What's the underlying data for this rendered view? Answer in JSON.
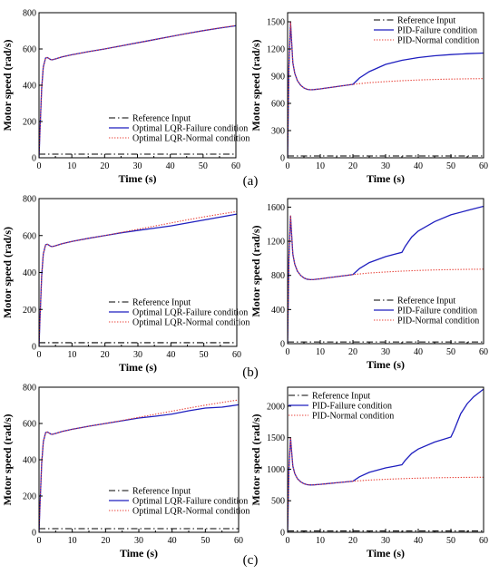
{
  "panel_labels": [
    "(a)",
    "(b)",
    "(c)"
  ],
  "colors": {
    "reference": "#000000",
    "failure": "#1f1fbf",
    "normal": "#e8433a",
    "axis": "#000000"
  },
  "chart_data": [
    {
      "type": "line",
      "id": "a-left",
      "xlabel": "Time (s)",
      "ylabel": "Motor speed (rad/s)",
      "xlim": [
        0,
        60
      ],
      "ylim": [
        0,
        800
      ],
      "xticks": [
        0,
        10,
        20,
        30,
        40,
        50,
        60
      ],
      "yticks": [
        0,
        200,
        400,
        600,
        800
      ],
      "grid": false,
      "legend_position": "lower-right",
      "series": [
        {
          "name": "Reference Input",
          "style": "dashdot",
          "color": "#000000",
          "x": [
            0,
            60
          ],
          "y": [
            20,
            20
          ]
        },
        {
          "name": "Optimal LQR-Failure condition",
          "style": "solid",
          "color": "#1f1fbf",
          "x": [
            0,
            0.3,
            0.8,
            1.3,
            2,
            2.5,
            3,
            3.5,
            4,
            5,
            7,
            10,
            15,
            20,
            25,
            30,
            35,
            40,
            45,
            50,
            55,
            60
          ],
          "y": [
            0,
            150,
            380,
            500,
            550,
            553,
            548,
            542,
            540,
            545,
            556,
            568,
            585,
            600,
            617,
            634,
            651,
            668,
            685,
            701,
            715,
            728
          ]
        },
        {
          "name": "Optimal LQR-Normal condition",
          "style": "dotted",
          "color": "#e8433a",
          "x": [
            0,
            0.3,
            0.8,
            1.3,
            2,
            2.5,
            3,
            3.5,
            4,
            5,
            7,
            10,
            15,
            20,
            25,
            30,
            35,
            40,
            45,
            50,
            55,
            60
          ],
          "y": [
            0,
            150,
            380,
            500,
            550,
            553,
            548,
            542,
            540,
            545,
            556,
            568,
            585,
            600,
            617,
            634,
            651,
            668,
            685,
            701,
            716,
            730
          ]
        }
      ]
    },
    {
      "type": "line",
      "id": "a-right",
      "xlabel": "Time (s)",
      "ylabel": "Motor speed (rad/s)",
      "xlim": [
        0,
        60
      ],
      "ylim": [
        0,
        1600
      ],
      "xticks": [
        0,
        10,
        20,
        30,
        40,
        50,
        60
      ],
      "yticks": [
        0,
        300,
        600,
        900,
        1200,
        1500
      ],
      "grid": false,
      "legend_position": "top-right",
      "series": [
        {
          "name": "Reference Input",
          "style": "dashdot",
          "color": "#000000",
          "x": [
            0,
            60
          ],
          "y": [
            20,
            20
          ]
        },
        {
          "name": "PID-Failure condition",
          "style": "solid",
          "color": "#1f1fbf",
          "x": [
            0,
            0.4,
            0.9,
            1.2,
            1.6,
            2.2,
            3,
            4,
            5,
            6,
            7,
            8,
            10,
            12,
            15,
            18,
            20,
            22,
            25,
            30,
            35,
            40,
            45,
            50,
            55,
            60
          ],
          "y": [
            0,
            1000,
            1500,
            1300,
            1050,
            930,
            850,
            800,
            770,
            755,
            750,
            752,
            760,
            770,
            785,
            800,
            810,
            880,
            950,
            1030,
            1075,
            1105,
            1125,
            1138,
            1148,
            1155
          ]
        },
        {
          "name": "PID-Normal condition",
          "style": "dotted",
          "color": "#e8433a",
          "x": [
            0,
            0.4,
            0.9,
            1.2,
            1.6,
            2.2,
            3,
            4,
            5,
            6,
            7,
            8,
            10,
            12,
            15,
            18,
            20,
            25,
            30,
            35,
            40,
            45,
            50,
            55,
            60
          ],
          "y": [
            0,
            1000,
            1500,
            1300,
            1050,
            930,
            850,
            800,
            770,
            755,
            750,
            752,
            760,
            770,
            785,
            800,
            810,
            828,
            840,
            850,
            858,
            864,
            868,
            871,
            873
          ]
        }
      ]
    },
    {
      "type": "line",
      "id": "b-left",
      "xlabel": "Time (s)",
      "ylabel": "Motor speed (rad/s)",
      "xlim": [
        0,
        60
      ],
      "ylim": [
        0,
        800
      ],
      "xticks": [
        0,
        10,
        20,
        30,
        40,
        50,
        60
      ],
      "yticks": [
        0,
        200,
        400,
        600,
        800
      ],
      "grid": false,
      "legend_position": "lower-right",
      "series": [
        {
          "name": "Reference Input",
          "style": "dashdot",
          "color": "#000000",
          "x": [
            0,
            60
          ],
          "y": [
            20,
            20
          ]
        },
        {
          "name": "Optimal LQR-Failure condition",
          "style": "solid",
          "color": "#1f1fbf",
          "x": [
            0,
            0.3,
            0.8,
            1.3,
            2,
            2.5,
            3,
            3.5,
            4,
            5,
            7,
            10,
            15,
            20,
            25,
            30,
            35,
            40,
            45,
            50,
            55,
            60
          ],
          "y": [
            0,
            150,
            380,
            500,
            550,
            553,
            548,
            542,
            540,
            545,
            556,
            568,
            585,
            600,
            615,
            628,
            640,
            652,
            668,
            684,
            700,
            716
          ]
        },
        {
          "name": "Optimal LQR-Normal condition",
          "style": "dotted",
          "color": "#e8433a",
          "x": [
            0,
            0.3,
            0.8,
            1.3,
            2,
            2.5,
            3,
            3.5,
            4,
            5,
            7,
            10,
            15,
            20,
            25,
            30,
            35,
            40,
            45,
            50,
            55,
            60
          ],
          "y": [
            0,
            150,
            380,
            500,
            550,
            553,
            548,
            542,
            540,
            545,
            556,
            568,
            585,
            600,
            617,
            634,
            651,
            668,
            685,
            701,
            716,
            730
          ]
        }
      ]
    },
    {
      "type": "line",
      "id": "b-right",
      "xlabel": "Time (s)",
      "ylabel": "Motor speed (rad/s)",
      "xlim": [
        0,
        60
      ],
      "ylim": [
        0,
        1700
      ],
      "xticks": [
        0,
        10,
        20,
        30,
        40,
        50,
        60
      ],
      "yticks": [
        0,
        400,
        800,
        1200,
        1600
      ],
      "grid": false,
      "legend_position": "lower-right",
      "series": [
        {
          "name": "Reference Input",
          "style": "dashdot",
          "color": "#000000",
          "x": [
            0,
            60
          ],
          "y": [
            20,
            20
          ]
        },
        {
          "name": "PID-Failure condition",
          "style": "solid",
          "color": "#1f1fbf",
          "x": [
            0,
            0.4,
            0.9,
            1.2,
            1.6,
            2.2,
            3,
            4,
            5,
            6,
            7,
            8,
            10,
            12,
            15,
            18,
            20,
            22,
            25,
            30,
            33,
            35,
            36,
            38,
            40,
            45,
            50,
            55,
            60
          ],
          "y": [
            0,
            1000,
            1500,
            1300,
            1050,
            930,
            850,
            800,
            770,
            755,
            750,
            752,
            760,
            770,
            785,
            800,
            810,
            880,
            950,
            1020,
            1050,
            1070,
            1140,
            1250,
            1320,
            1430,
            1510,
            1560,
            1610
          ]
        },
        {
          "name": "PID-Normal condition",
          "style": "dotted",
          "color": "#e8433a",
          "x": [
            0,
            0.4,
            0.9,
            1.2,
            1.6,
            2.2,
            3,
            4,
            5,
            6,
            7,
            8,
            10,
            12,
            15,
            18,
            20,
            25,
            30,
            35,
            40,
            45,
            50,
            55,
            60
          ],
          "y": [
            0,
            1000,
            1500,
            1300,
            1050,
            930,
            850,
            800,
            770,
            755,
            750,
            752,
            760,
            770,
            785,
            800,
            810,
            828,
            840,
            850,
            858,
            864,
            868,
            871,
            873
          ]
        }
      ]
    },
    {
      "type": "line",
      "id": "c-left",
      "xlabel": "Time (s)",
      "ylabel": "Motor speed (rad/s)",
      "xlim": [
        0,
        60
      ],
      "ylim": [
        0,
        800
      ],
      "xticks": [
        0,
        10,
        20,
        30,
        40,
        50,
        60
      ],
      "yticks": [
        0,
        200,
        400,
        600,
        800
      ],
      "grid": false,
      "legend_position": "lower-right",
      "series": [
        {
          "name": "Reference Input",
          "style": "dashdot",
          "color": "#000000",
          "x": [
            0,
            60
          ],
          "y": [
            20,
            20
          ]
        },
        {
          "name": "Optimal LQR-Failure condition",
          "style": "solid",
          "color": "#1f1fbf",
          "x": [
            0,
            0.3,
            0.8,
            1.3,
            2,
            2.5,
            3,
            3.5,
            4,
            5,
            7,
            10,
            15,
            20,
            25,
            30,
            35,
            40,
            45,
            50,
            55,
            60
          ],
          "y": [
            0,
            150,
            380,
            500,
            550,
            553,
            548,
            542,
            540,
            545,
            556,
            568,
            585,
            600,
            615,
            630,
            640,
            652,
            670,
            685,
            690,
            703
          ]
        },
        {
          "name": "Optimal LQR-Normal condition",
          "style": "dotted",
          "color": "#e8433a",
          "x": [
            0,
            0.3,
            0.8,
            1.3,
            2,
            2.5,
            3,
            3.5,
            4,
            5,
            7,
            10,
            15,
            20,
            25,
            30,
            35,
            40,
            45,
            50,
            55,
            60
          ],
          "y": [
            0,
            150,
            380,
            500,
            550,
            553,
            548,
            542,
            540,
            545,
            556,
            568,
            585,
            600,
            617,
            634,
            651,
            668,
            685,
            701,
            716,
            730
          ]
        }
      ]
    },
    {
      "type": "line",
      "id": "c-right",
      "xlabel": "Time (s)",
      "ylabel": "Motor speed (rad/s)",
      "xlim": [
        0,
        60
      ],
      "ylim": [
        0,
        2300
      ],
      "xticks": [
        0,
        10,
        20,
        30,
        40,
        50,
        60
      ],
      "yticks": [
        0,
        500,
        1000,
        1500,
        2000
      ],
      "grid": false,
      "legend_position": "top-left",
      "series": [
        {
          "name": "Reference Input",
          "style": "dashdot",
          "color": "#000000",
          "x": [
            0,
            60
          ],
          "y": [
            20,
            20
          ]
        },
        {
          "name": "PID-Failure condition",
          "style": "solid",
          "color": "#1f1fbf",
          "x": [
            0,
            0.4,
            0.9,
            1.2,
            1.6,
            2.2,
            3,
            4,
            5,
            6,
            7,
            8,
            10,
            12,
            15,
            18,
            20,
            22,
            25,
            30,
            33,
            35,
            36,
            38,
            40,
            45,
            50,
            51,
            53,
            55,
            57,
            60
          ],
          "y": [
            0,
            1000,
            1500,
            1300,
            1050,
            930,
            850,
            800,
            770,
            755,
            750,
            752,
            760,
            770,
            785,
            800,
            810,
            880,
            950,
            1020,
            1050,
            1070,
            1140,
            1250,
            1320,
            1430,
            1510,
            1620,
            1880,
            2040,
            2150,
            2270
          ]
        },
        {
          "name": "PID-Normal condition",
          "style": "dotted",
          "color": "#e8433a",
          "x": [
            0,
            0.4,
            0.9,
            1.2,
            1.6,
            2.2,
            3,
            4,
            5,
            6,
            7,
            8,
            10,
            12,
            15,
            18,
            20,
            25,
            30,
            35,
            40,
            45,
            50,
            55,
            60
          ],
          "y": [
            0,
            1000,
            1500,
            1300,
            1050,
            930,
            850,
            800,
            770,
            755,
            750,
            752,
            760,
            770,
            785,
            800,
            810,
            828,
            840,
            850,
            858,
            864,
            868,
            871,
            873
          ]
        }
      ]
    }
  ]
}
